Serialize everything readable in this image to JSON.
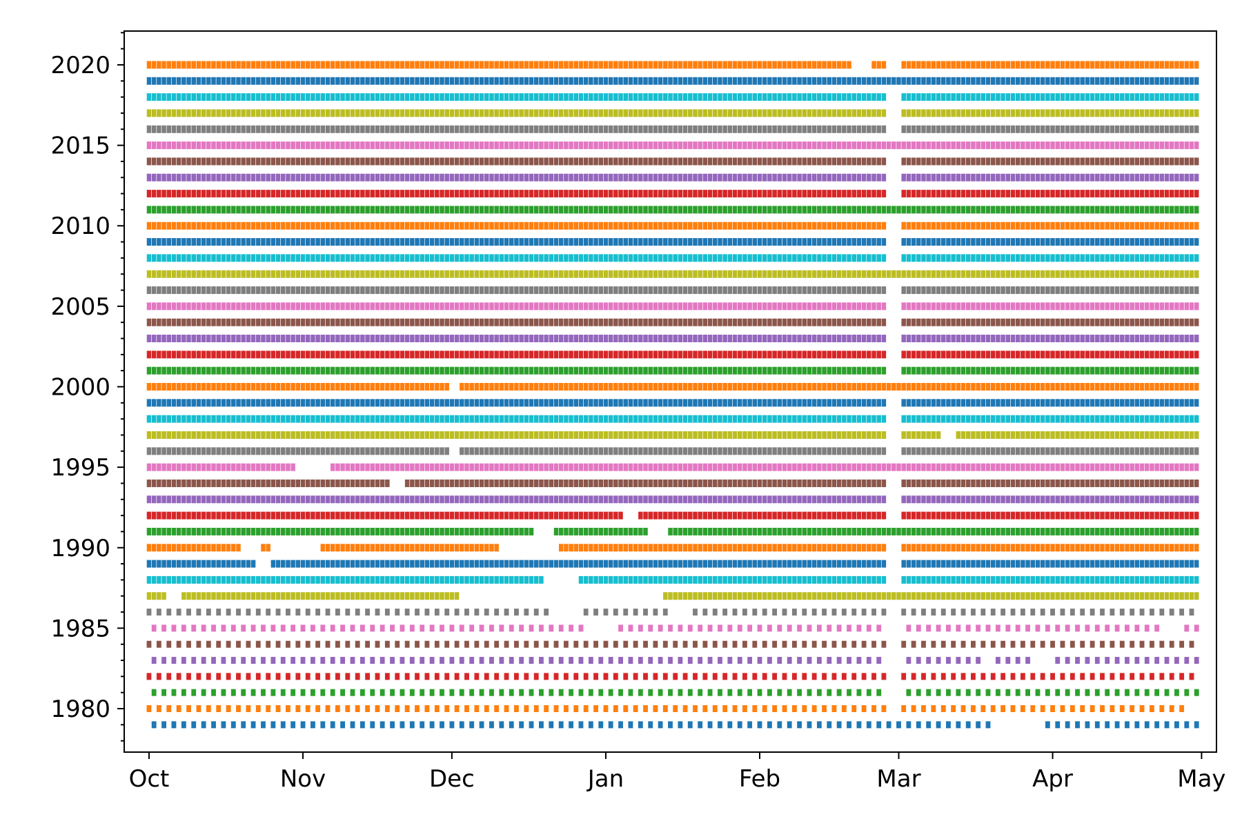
{
  "chart_data": {
    "type": "scatter",
    "title": "",
    "xlabel": "",
    "ylabel": "",
    "grid": false,
    "x_axis": {
      "kind": "date",
      "range": [
        "Sep 26",
        "May 4"
      ],
      "ticks": [
        "Oct",
        "Nov",
        "Dec",
        "Jan",
        "Feb",
        "Mar",
        "Apr",
        "May"
      ]
    },
    "y_axis": {
      "range": [
        1977.3,
        2022.1
      ],
      "ticks": [
        1980,
        1985,
        1990,
        1995,
        2000,
        2005,
        2010,
        2015,
        2020
      ],
      "minor_tick_step": 1
    },
    "season": {
      "start": "Oct 1",
      "end": "Apr 30"
    },
    "daily_marker": "square",
    "palette": [
      "#1f77b4",
      "#ff7f0e",
      "#2ca02c",
      "#d62728",
      "#9467bd",
      "#8c564b",
      "#e377c2",
      "#7f7f7f",
      "#bcbd22",
      "#17becf"
    ],
    "series_note": "",
    "series": [
      {
        "year": 1979,
        "cadence": "every 2 days",
        "gaps": [
          [
            "Mar 20",
            "Mar 29"
          ]
        ]
      },
      {
        "year": 1980,
        "cadence": "every 2 days",
        "gaps": [
          [
            "Feb 27",
            "Mar 1"
          ],
          [
            "Apr 29",
            "Apr 30"
          ]
        ]
      },
      {
        "year": 1981,
        "cadence": "every 2 days",
        "gaps": [
          [
            "Feb 27",
            "Mar 1"
          ]
        ]
      },
      {
        "year": 1982,
        "cadence": "every 2 days",
        "gaps": [
          [
            "Feb 27",
            "Mar 1"
          ]
        ]
      },
      {
        "year": 1983,
        "cadence": "every 2 days",
        "gaps": [
          [
            "Feb 27",
            "Mar 1"
          ],
          [
            "Mar 18",
            "Mar 20"
          ],
          [
            "Mar 29",
            "Mar 31"
          ]
        ]
      },
      {
        "year": 1984,
        "cadence": "every 2 days",
        "gaps": [
          [
            "Feb 27",
            "Mar 1"
          ]
        ]
      },
      {
        "year": 1985,
        "cadence": "every 2 days",
        "gaps": [
          [
            "Dec 28",
            "Jan 2"
          ],
          [
            "Feb 27",
            "Mar 1"
          ],
          [
            "Apr 23",
            "Apr 27"
          ]
        ]
      },
      {
        "year": 1986,
        "cadence": "every 2 days",
        "gaps": [
          [
            "Dec 21",
            "Dec 26"
          ],
          [
            "Jan 14",
            "Jan 17"
          ],
          [
            "Feb 27",
            "Mar 1"
          ]
        ]
      },
      {
        "year": 1987,
        "cadence": "daily",
        "gaps": [
          [
            "Oct 5",
            "Oct 7"
          ],
          [
            "Dec 3",
            "Jan 12"
          ]
        ]
      },
      {
        "year": 1988,
        "cadence": "daily",
        "gaps": [
          [
            "Dec 20",
            "Dec 26"
          ],
          [
            "Feb 27",
            "Mar 1"
          ]
        ]
      },
      {
        "year": 1989,
        "cadence": "daily",
        "gaps": [
          [
            "Oct 23",
            "Oct 25"
          ],
          [
            "Feb 27",
            "Mar 1"
          ]
        ]
      },
      {
        "year": 1990,
        "cadence": "daily",
        "gaps": [
          [
            "Oct 20",
            "Oct 23"
          ],
          [
            "Oct 26",
            "Nov 4"
          ],
          [
            "Dec 11",
            "Dec 22"
          ],
          [
            "Feb 27",
            "Mar 1"
          ]
        ]
      },
      {
        "year": 1991,
        "cadence": "daily",
        "gaps": [
          [
            "Dec 18",
            "Dec 21"
          ],
          [
            "Jan 10",
            "Jan 13"
          ]
        ]
      },
      {
        "year": 1992,
        "cadence": "daily",
        "gaps": [
          [
            "Jan 5",
            "Jan 7"
          ],
          [
            "Feb 27",
            "Mar 1"
          ]
        ]
      },
      {
        "year": 1993,
        "cadence": "daily",
        "gaps": [
          [
            "Feb 27",
            "Mar 1"
          ]
        ]
      },
      {
        "year": 1994,
        "cadence": "daily",
        "gaps": [
          [
            "Nov 19",
            "Nov 21"
          ],
          [
            "Feb 27",
            "Mar 1"
          ]
        ]
      },
      {
        "year": 1995,
        "cadence": "daily",
        "gaps": [
          [
            "Oct 31",
            "Nov 6"
          ]
        ]
      },
      {
        "year": 1996,
        "cadence": "daily",
        "gaps": [
          [
            "Dec 1",
            "Dec 2"
          ],
          [
            "Feb 27",
            "Mar 1"
          ]
        ]
      },
      {
        "year": 1997,
        "cadence": "daily",
        "gaps": [
          [
            "Feb 27",
            "Mar 1"
          ],
          [
            "Mar 10",
            "Mar 12"
          ]
        ]
      },
      {
        "year": 1998,
        "cadence": "daily",
        "gaps": [
          [
            "Feb 27",
            "Mar 1"
          ]
        ]
      },
      {
        "year": 1999,
        "cadence": "daily",
        "gaps": [
          [
            "Feb 27",
            "Mar 1"
          ]
        ]
      },
      {
        "year": 2000,
        "cadence": "daily",
        "gaps": [
          [
            "Dec 1",
            "Dec 2"
          ]
        ]
      },
      {
        "year": 2001,
        "cadence": "daily",
        "gaps": [
          [
            "Feb 27",
            "Mar 1"
          ]
        ]
      },
      {
        "year": 2002,
        "cadence": "daily",
        "gaps": [
          [
            "Feb 27",
            "Mar 1"
          ]
        ]
      },
      {
        "year": 2003,
        "cadence": "daily",
        "gaps": [
          [
            "Feb 27",
            "Mar 1"
          ]
        ]
      },
      {
        "year": 2004,
        "cadence": "daily",
        "gaps": [
          [
            "Feb 27",
            "Mar 1"
          ]
        ]
      },
      {
        "year": 2005,
        "cadence": "daily",
        "gaps": [
          [
            "Feb 27",
            "Mar 1"
          ]
        ]
      },
      {
        "year": 2006,
        "cadence": "daily",
        "gaps": [
          [
            "Feb 27",
            "Mar 1"
          ]
        ]
      },
      {
        "year": 2007,
        "cadence": "daily",
        "gaps": []
      },
      {
        "year": 2008,
        "cadence": "daily",
        "gaps": [
          [
            "Feb 27",
            "Mar 1"
          ]
        ]
      },
      {
        "year": 2009,
        "cadence": "daily",
        "gaps": [
          [
            "Feb 27",
            "Mar 1"
          ]
        ]
      },
      {
        "year": 2010,
        "cadence": "daily",
        "gaps": [
          [
            "Feb 27",
            "Mar 1"
          ]
        ]
      },
      {
        "year": 2011,
        "cadence": "daily",
        "gaps": []
      },
      {
        "year": 2012,
        "cadence": "daily",
        "gaps": [
          [
            "Feb 27",
            "Mar 1"
          ]
        ]
      },
      {
        "year": 2013,
        "cadence": "daily",
        "gaps": [
          [
            "Feb 27",
            "Mar 1"
          ]
        ]
      },
      {
        "year": 2014,
        "cadence": "daily",
        "gaps": [
          [
            "Feb 27",
            "Mar 1"
          ]
        ]
      },
      {
        "year": 2015,
        "cadence": "daily",
        "gaps": []
      },
      {
        "year": 2016,
        "cadence": "daily",
        "gaps": [
          [
            "Feb 27",
            "Mar 1"
          ]
        ]
      },
      {
        "year": 2017,
        "cadence": "daily",
        "gaps": [
          [
            "Feb 27",
            "Mar 1"
          ]
        ]
      },
      {
        "year": 2018,
        "cadence": "daily",
        "gaps": [
          [
            "Feb 27",
            "Mar 1"
          ]
        ]
      },
      {
        "year": 2019,
        "cadence": "daily",
        "gaps": []
      },
      {
        "year": 2020,
        "cadence": "daily",
        "gaps": [
          [
            "Feb 20",
            "Feb 23"
          ],
          [
            "Feb 27",
            "Mar 1"
          ]
        ]
      }
    ]
  }
}
